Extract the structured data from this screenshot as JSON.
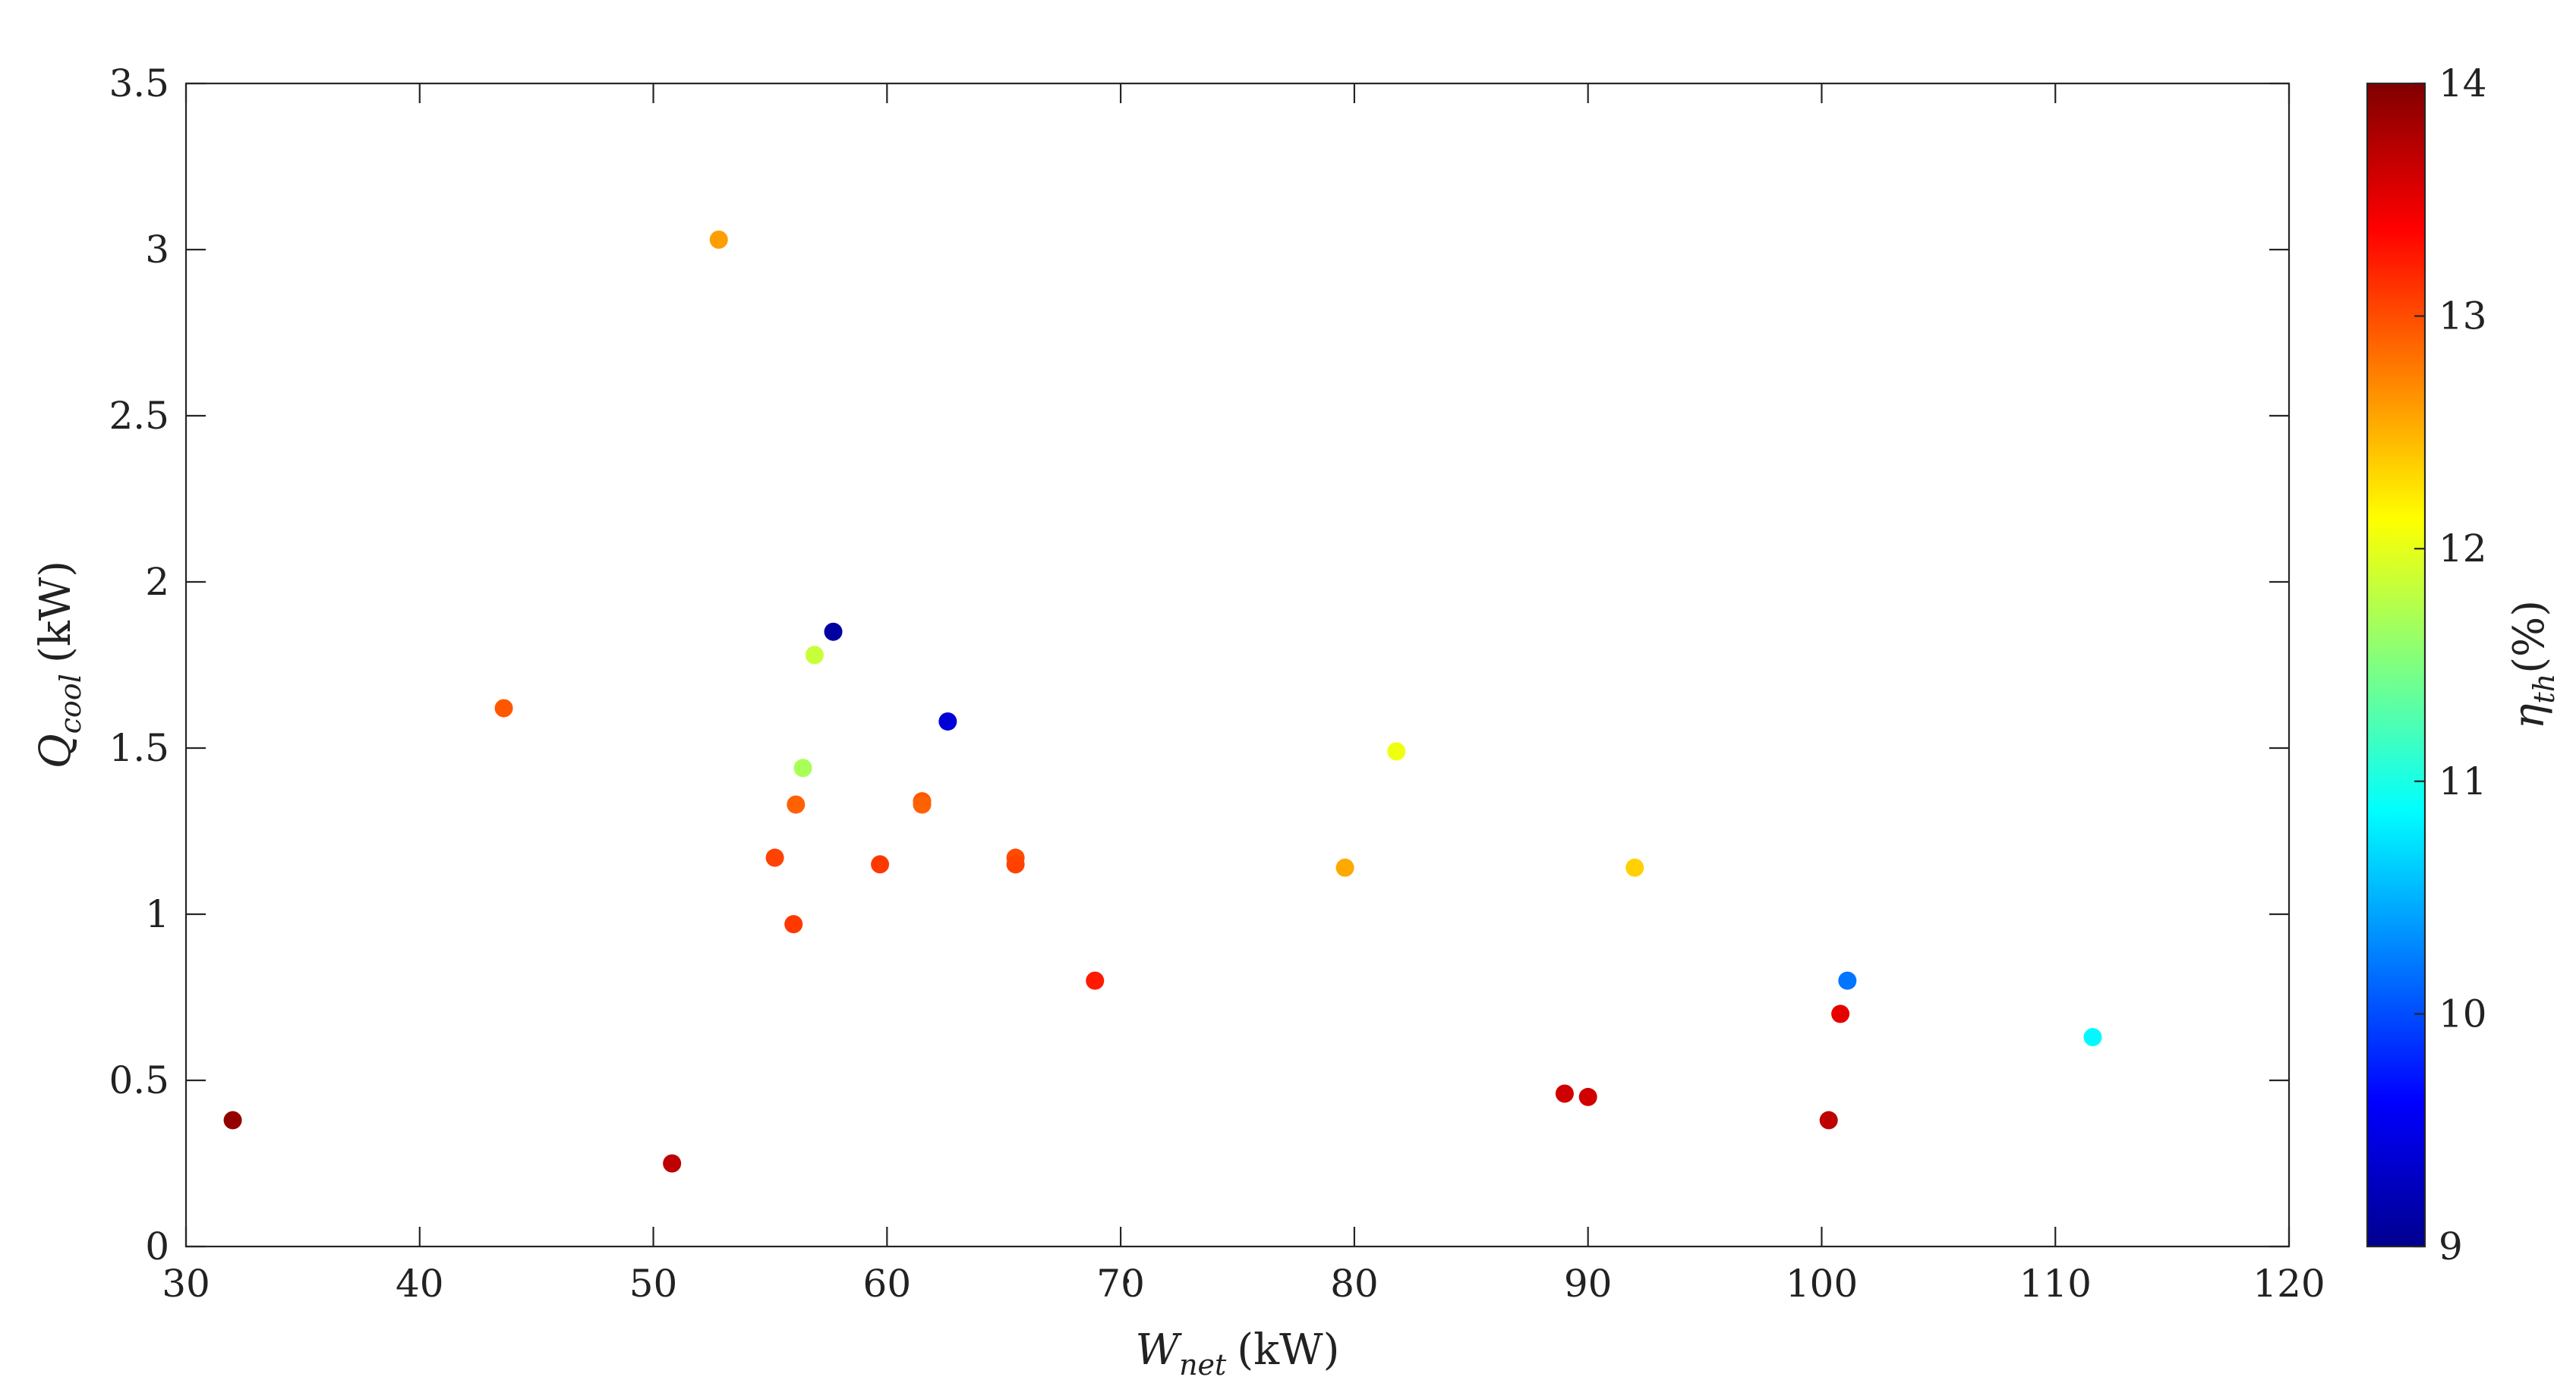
{
  "chart_data": {
    "type": "scatter",
    "title": "",
    "xlabel": {
      "base": "W",
      "dot": "˙",
      "sub": "net",
      "unit": "(kW)"
    },
    "ylabel": {
      "base": "Q",
      "dot": "˙",
      "sub": "cool",
      "unit": "(kW)"
    },
    "colorbar_label": {
      "base": "η",
      "sub": "th",
      "unit": "(%)"
    },
    "xlim": [
      30,
      120
    ],
    "ylim": [
      0,
      3.5
    ],
    "clim": [
      9,
      14
    ],
    "colormap": "jet",
    "grid": false,
    "x_ticks": [
      "30",
      "40",
      "50",
      "60",
      "70",
      "80",
      "90",
      "100",
      "110",
      "120"
    ],
    "y_ticks": [
      "0",
      "0.5",
      "1",
      "1.5",
      "2",
      "2.5",
      "3",
      "3.5"
    ],
    "colorbar_ticks": [
      "9",
      "10",
      "11",
      "12",
      "13",
      "14"
    ],
    "points": [
      {
        "x": 32.0,
        "y": 0.38,
        "c": 13.9
      },
      {
        "x": 43.6,
        "y": 1.62,
        "c": 12.95
      },
      {
        "x": 50.8,
        "y": 0.25,
        "c": 13.7
      },
      {
        "x": 52.8,
        "y": 3.03,
        "c": 12.6
      },
      {
        "x": 55.2,
        "y": 1.17,
        "c": 13.05
      },
      {
        "x": 56.0,
        "y": 0.97,
        "c": 13.1
      },
      {
        "x": 56.1,
        "y": 1.33,
        "c": 12.9
      },
      {
        "x": 56.4,
        "y": 1.44,
        "c": 11.7
      },
      {
        "x": 56.9,
        "y": 1.78,
        "c": 11.85
      },
      {
        "x": 57.7,
        "y": 1.85,
        "c": 9.1
      },
      {
        "x": 59.7,
        "y": 1.15,
        "c": 13.1
      },
      {
        "x": 61.5,
        "y": 1.34,
        "c": 12.95
      },
      {
        "x": 61.5,
        "y": 1.33,
        "c": 12.9
      },
      {
        "x": 62.6,
        "y": 1.58,
        "c": 9.4
      },
      {
        "x": 65.5,
        "y": 1.17,
        "c": 13.0
      },
      {
        "x": 65.5,
        "y": 1.15,
        "c": 13.05
      },
      {
        "x": 68.9,
        "y": 0.8,
        "c": 13.25
      },
      {
        "x": 79.6,
        "y": 1.14,
        "c": 12.55
      },
      {
        "x": 81.8,
        "y": 1.49,
        "c": 12.05
      },
      {
        "x": 89.0,
        "y": 0.46,
        "c": 13.6
      },
      {
        "x": 90.0,
        "y": 0.45,
        "c": 13.6
      },
      {
        "x": 92.0,
        "y": 1.14,
        "c": 12.35
      },
      {
        "x": 100.3,
        "y": 0.38,
        "c": 13.7
      },
      {
        "x": 100.8,
        "y": 0.7,
        "c": 13.5
      },
      {
        "x": 101.1,
        "y": 0.8,
        "c": 10.2
      },
      {
        "x": 111.6,
        "y": 0.63,
        "c": 10.85
      }
    ]
  }
}
